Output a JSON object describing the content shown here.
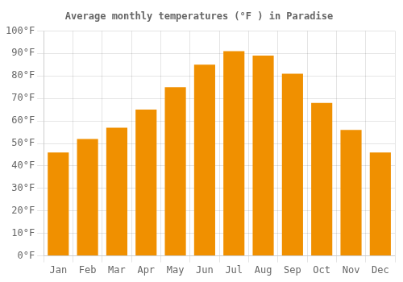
{
  "chart_data": {
    "type": "bar",
    "title": "Average monthly temperatures (°F ) in Paradise",
    "categories": [
      "Jan",
      "Feb",
      "Mar",
      "Apr",
      "May",
      "Jun",
      "Jul",
      "Aug",
      "Sep",
      "Oct",
      "Nov",
      "Dec"
    ],
    "values": [
      46,
      52,
      57,
      65,
      75,
      85,
      91,
      89,
      81,
      68,
      56,
      46
    ],
    "color": "#F09000",
    "ylim": [
      0,
      100
    ],
    "yticks": [
      {
        "value": 0,
        "label": "0°F"
      },
      {
        "value": 10,
        "label": "10°F"
      },
      {
        "value": 20,
        "label": "20°F"
      },
      {
        "value": 30,
        "label": "30°F"
      },
      {
        "value": 40,
        "label": "40°F"
      },
      {
        "value": 50,
        "label": "50°F"
      },
      {
        "value": 60,
        "label": "60°F"
      },
      {
        "value": 70,
        "label": "70°F"
      },
      {
        "value": 80,
        "label": "80°F"
      },
      {
        "value": 90,
        "label": "90°F"
      },
      {
        "value": 100,
        "label": "100°F"
      }
    ],
    "grid": true
  }
}
